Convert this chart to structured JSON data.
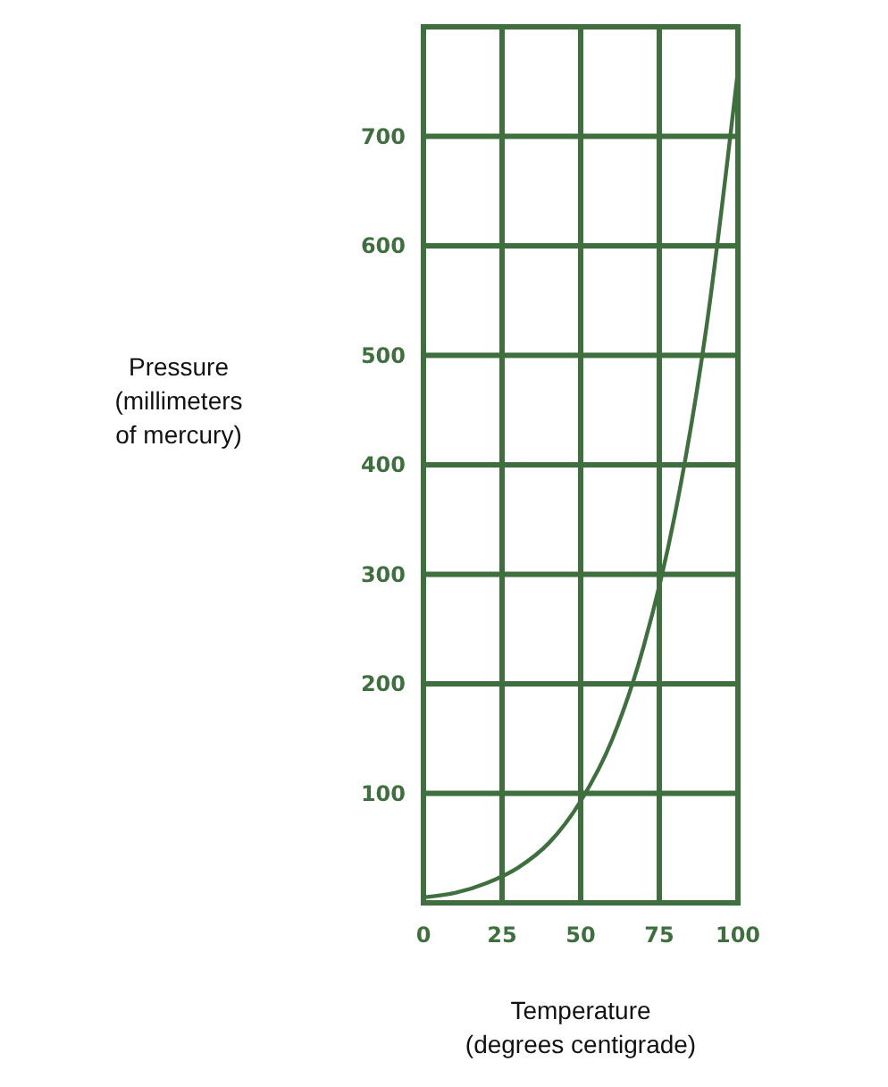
{
  "chart_data": {
    "type": "line",
    "xlabel": "Temperature\n(degrees centigrade)",
    "ylabel": "Pressure\n(millimeters\nof mercury)",
    "x": [
      0,
      10,
      20,
      30,
      40,
      50,
      60,
      70,
      80,
      90,
      100
    ],
    "series": [
      {
        "color": "#3f6f3f",
        "values": [
          5,
          9,
          18,
          32,
          55,
          93,
          149,
          234,
          355,
          526,
          760
        ]
      }
    ],
    "xlim": [
      0,
      100
    ],
    "xticks": [
      0,
      25,
      50,
      75,
      100
    ],
    "ylim": [
      0,
      800
    ],
    "yticks": [
      100,
      200,
      300,
      400,
      500,
      600,
      700
    ],
    "grid": true,
    "marker": "none",
    "line_style": "solid"
  }
}
